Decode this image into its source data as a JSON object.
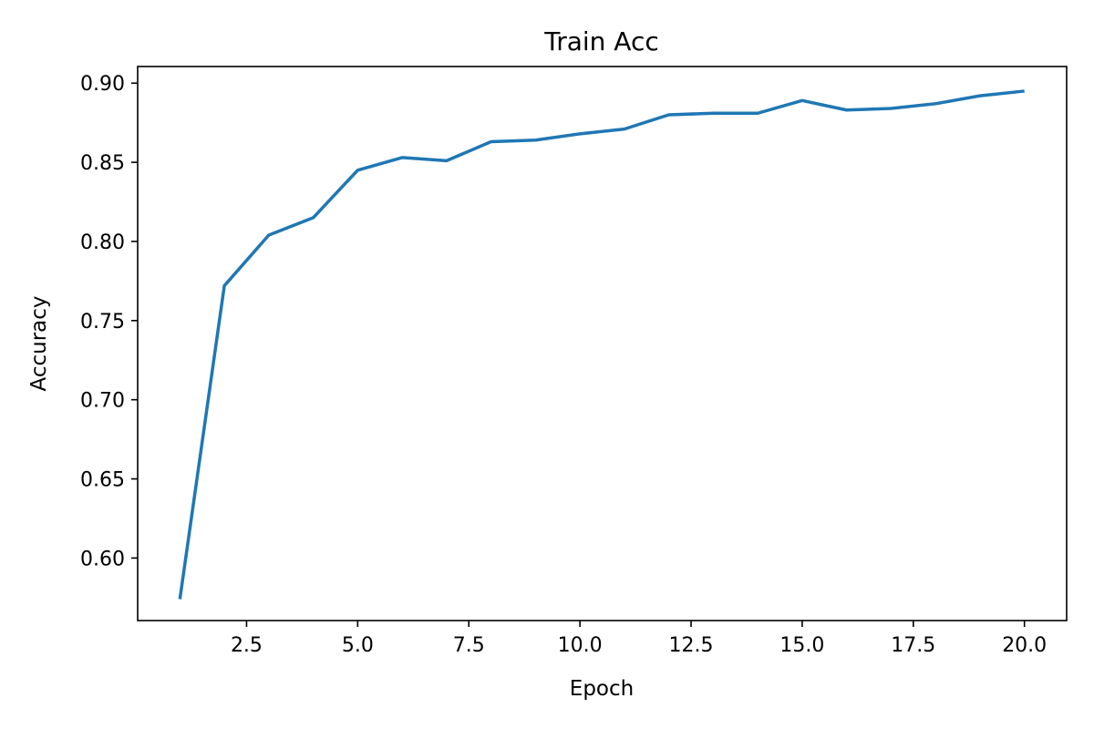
{
  "chart_data": {
    "type": "line",
    "title": "Train Acc",
    "xlabel": "Epoch",
    "ylabel": "Accuracy",
    "xlim": [
      0.05,
      20.95
    ],
    "ylim": [
      0.5605,
      0.9105
    ],
    "xticks": [
      2.5,
      5.0,
      7.5,
      10.0,
      12.5,
      15.0,
      17.5,
      20.0
    ],
    "xtick_labels": [
      "2.5",
      "5.0",
      "7.5",
      "10.0",
      "12.5",
      "15.0",
      "17.5",
      "20.0"
    ],
    "yticks": [
      0.6,
      0.65,
      0.7,
      0.75,
      0.8,
      0.85,
      0.9
    ],
    "ytick_labels": [
      "0.60",
      "0.65",
      "0.70",
      "0.75",
      "0.80",
      "0.85",
      "0.90"
    ],
    "grid": false,
    "series": [
      {
        "name": "Train Acc",
        "color": "#1f77b4",
        "x": [
          1,
          2,
          3,
          4,
          5,
          6,
          7,
          8,
          9,
          10,
          11,
          12,
          13,
          14,
          15,
          16,
          17,
          18,
          19,
          20
        ],
        "y": [
          0.574,
          0.772,
          0.804,
          0.815,
          0.845,
          0.853,
          0.851,
          0.863,
          0.864,
          0.868,
          0.871,
          0.88,
          0.881,
          0.881,
          0.889,
          0.883,
          0.884,
          0.887,
          0.892,
          0.895
        ]
      }
    ]
  }
}
